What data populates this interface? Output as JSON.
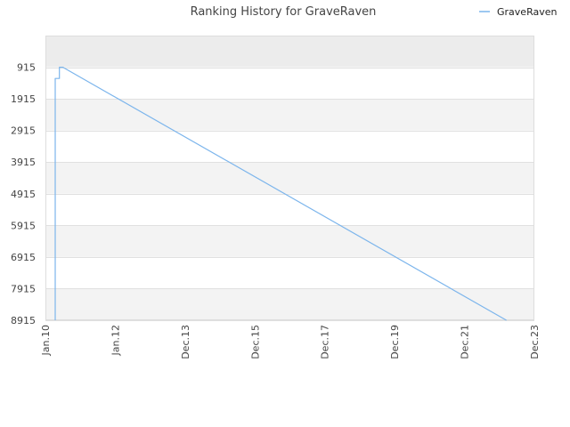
{
  "chart_data": {
    "type": "line",
    "title": "Ranking History for GraveRaven",
    "xlabel": "",
    "ylabel": "",
    "y_inverted": true,
    "ylim": [
      -85,
      8915
    ],
    "xlim": [
      "Jan.10",
      "Dec.23"
    ],
    "x_ticks": [
      "Jan.10",
      "Jan.12",
      "Dec.13",
      "Dec.15",
      "Dec.17",
      "Dec.19",
      "Dec.21",
      "Dec.23"
    ],
    "y_ticks": [
      915,
      1915,
      2915,
      3915,
      4915,
      5915,
      6915,
      7915,
      8915
    ],
    "legend": {
      "position": "top-right",
      "entries": [
        "GraveRaven"
      ]
    },
    "grid": true,
    "alternating_bands": true,
    "series": [
      {
        "name": "GraveRaven",
        "color": "#7cb5ec",
        "points": [
          {
            "x": 0.14,
            "y": 8915
          },
          {
            "x": 0.14,
            "y": 1270
          },
          {
            "x": 0.2,
            "y": 1270
          },
          {
            "x": 0.2,
            "y": 915
          },
          {
            "x": 0.25,
            "y": 915
          },
          {
            "x": 6.6,
            "y": 8915
          }
        ]
      }
    ]
  },
  "colors": {
    "band_light": "#f3f3f3",
    "band_top": "#ececec",
    "band_white": "#ffffff",
    "grid": "#e0e0e0",
    "axis": "#cccccc",
    "series": "#7cb5ec"
  }
}
